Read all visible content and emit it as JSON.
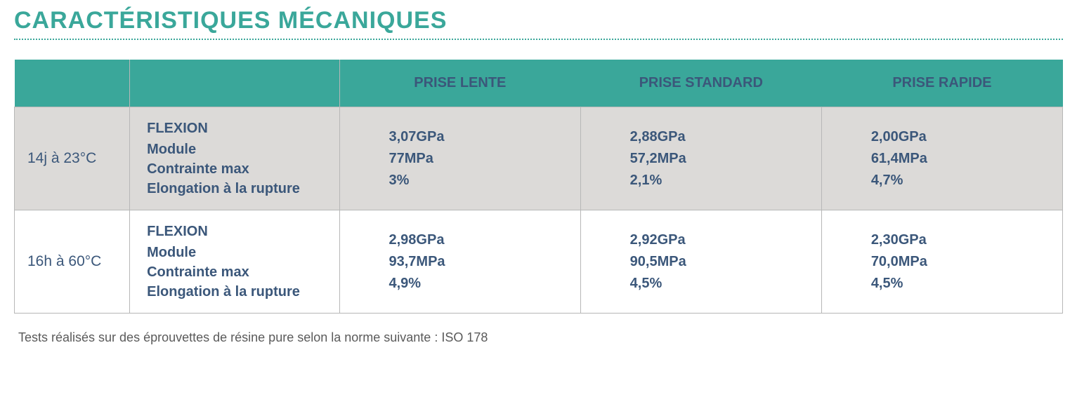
{
  "title": "CARACTÉRISTIQUES MÉCANIQUES",
  "columns": [
    "PRISE LENTE",
    "PRISE STANDARD",
    "PRISE RAPIDE"
  ],
  "property_block": {
    "heading": "FLEXION",
    "lines": [
      "Module",
      "Contrainte max",
      "Elongation à la rupture"
    ]
  },
  "rows": [
    {
      "condition": "14j à 23°C",
      "values": [
        [
          "3,07GPa",
          "77MPa",
          "3%"
        ],
        [
          "2,88GPa",
          "57,2MPa",
          "2,1%"
        ],
        [
          "2,00GPa",
          "61,4MPa",
          "4,7%"
        ]
      ]
    },
    {
      "condition": "16h à 60°C",
      "values": [
        [
          "2,98GPa",
          "93,7MPa",
          "4,9%"
        ],
        [
          "2,92GPa",
          "90,5MPa",
          "4,5%"
        ],
        [
          "2,30GPa",
          "70,0MPa",
          "4,5%"
        ]
      ]
    }
  ],
  "footnote": "Tests réalisés sur des éprouvettes de résine pure selon la norme suivante : ISO 178",
  "colors": {
    "accent": "#3aa79a",
    "text_blue": "#3b577a",
    "row_alt_bg": "#dcdad8",
    "border": "#b7b7b7",
    "footnote": "#5a5a5a"
  }
}
